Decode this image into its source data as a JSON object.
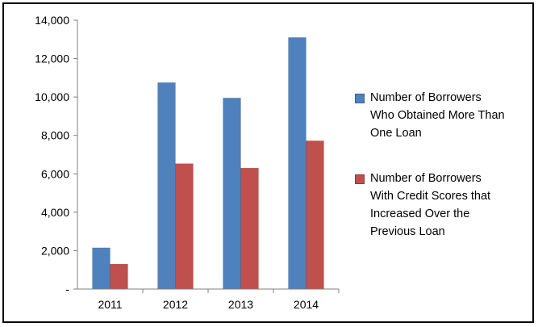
{
  "chart_data": {
    "type": "bar",
    "categories": [
      "2011",
      "2012",
      "2013",
      "2014"
    ],
    "series": [
      {
        "name": "Number of Borrowers\nWho Obtained More Than\nOne Loan",
        "color": "#4f81bd",
        "values": [
          2150,
          10750,
          9950,
          13100
        ]
      },
      {
        "name": "Number of Borrowers\nWith Credit Scores that\nIncreased Over the\nPrevious Loan",
        "color": "#c0504d",
        "values": [
          1300,
          6530,
          6300,
          7720
        ]
      }
    ],
    "yticks": [
      "-",
      "2,000",
      "4,000",
      "6,000",
      "8,000",
      "10,000",
      "12,000",
      "14,000"
    ],
    "ylim": [
      0,
      14000
    ],
    "grid": false,
    "legend_position": "right"
  }
}
